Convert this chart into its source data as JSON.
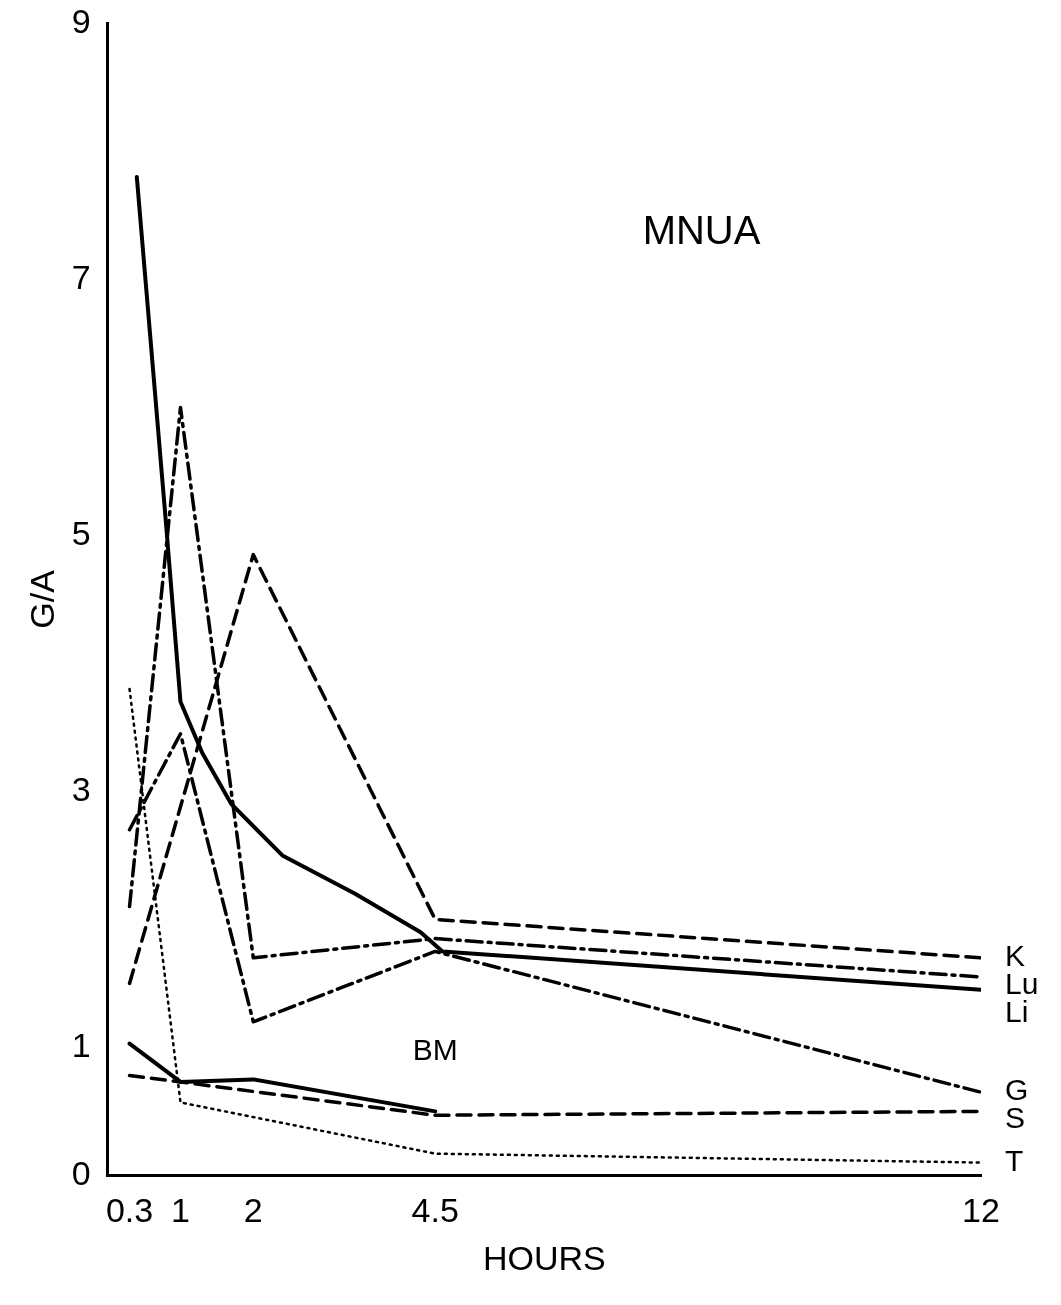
{
  "chart_data": {
    "type": "line",
    "xlabel": "HOURS",
    "ylabel": "G/A",
    "annotations": [
      "MNUA"
    ],
    "xlim": [
      0,
      12
    ],
    "ylim": [
      0,
      9
    ],
    "xticks": [
      {
        "value": 0.3,
        "label": "0.3"
      },
      1,
      2,
      4.5,
      12
    ],
    "yticks": [
      0,
      1,
      3,
      5,
      7,
      9
    ],
    "grid": false,
    "legend": false,
    "marker": "none",
    "series": [
      {
        "name": "K",
        "color": "#000000",
        "line_style": "dashed",
        "x": [
          0.3,
          2,
          4.5,
          12
        ],
        "values": [
          1.5,
          4.85,
          2.0,
          1.7
        ]
      },
      {
        "name": "Lu",
        "color": "#000000",
        "line_style": "dashdot",
        "x": [
          0.3,
          1,
          2,
          4.5,
          12
        ],
        "values": [
          2.1,
          6.0,
          1.7,
          1.85,
          1.55
        ]
      },
      {
        "name": "Li",
        "color": "#000000",
        "line_style": "solid",
        "x": [
          0.4,
          0.8,
          1.0,
          1.3,
          1.7,
          2.4,
          3.4,
          4.3,
          4.6,
          12
        ],
        "values": [
          7.8,
          5.1,
          3.7,
          3.3,
          2.9,
          2.5,
          2.2,
          1.9,
          1.75,
          1.45
        ]
      },
      {
        "name": "G",
        "color": "#000000",
        "line_style": "dashdot",
        "x": [
          0.3,
          1,
          2,
          4.5,
          12
        ],
        "values": [
          2.7,
          3.45,
          1.2,
          1.75,
          0.65
        ]
      },
      {
        "name": "S",
        "color": "#000000",
        "line_style": "dashed",
        "x": [
          0.3,
          1,
          4.5,
          12
        ],
        "values": [
          0.78,
          0.73,
          0.47,
          0.5
        ]
      },
      {
        "name": "T",
        "color": "#000000",
        "line_style": "dotted",
        "x": [
          0.3,
          1,
          4.5,
          12
        ],
        "values": [
          3.8,
          0.57,
          0.17,
          0.1
        ]
      },
      {
        "name": "BM",
        "color": "#000000",
        "line_style": "solid",
        "x": [
          0.3,
          1,
          2,
          4.5
        ],
        "values": [
          1.03,
          0.73,
          0.75,
          0.5
        ]
      }
    ]
  }
}
